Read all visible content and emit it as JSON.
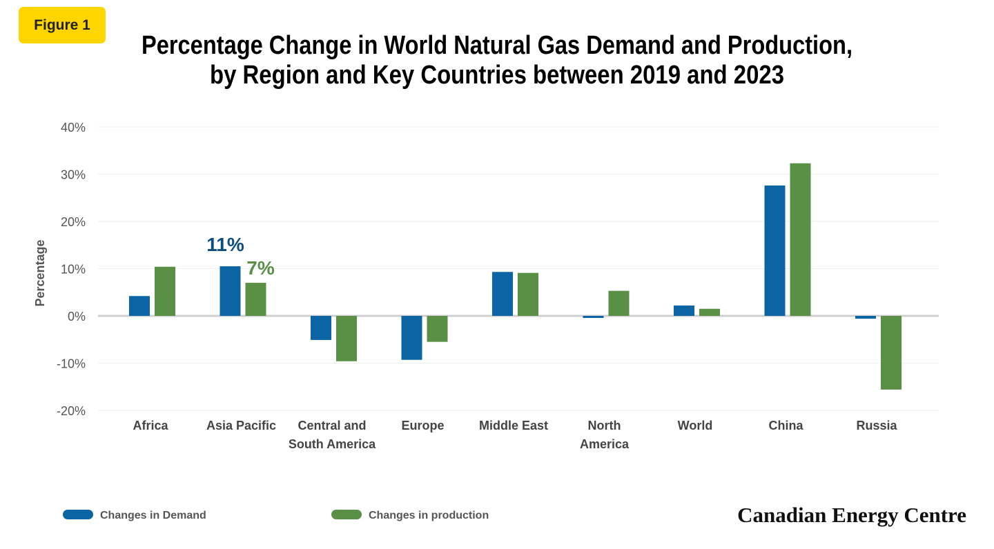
{
  "badge": "Figure 1",
  "brand": "Canadian Energy Centre",
  "colors": {
    "demand": "#0b64a3",
    "production": "#5a8f46",
    "badge": "#ffd500"
  },
  "chart_data": {
    "type": "bar",
    "title": [
      "Percentage Change in World Natural Gas Demand and Production,",
      "by Region and Key Countries between 2019 and 2023"
    ],
    "ylabel": "Percentage",
    "xlabel": "",
    "ylim": [
      -20,
      40
    ],
    "yticks": [
      "40%",
      "30%",
      "20%",
      "10%",
      "0%",
      "-10%",
      "-20%"
    ],
    "ytick_values": [
      40,
      30,
      20,
      10,
      0,
      -10,
      -20
    ],
    "grid": true,
    "legend": "bottom",
    "categories": [
      [
        "Africa"
      ],
      [
        "Asia Pacific"
      ],
      [
        "Central and",
        "South America"
      ],
      [
        "Europe"
      ],
      [
        "Middle East"
      ],
      [
        "North",
        "America"
      ],
      [
        "World"
      ],
      [
        "China"
      ],
      [
        "Russia"
      ]
    ],
    "series": [
      {
        "name": "Changes in Demand",
        "values": [
          4.2,
          10.5,
          -5.1,
          -9.3,
          9.3,
          -0.4,
          2.2,
          27.6,
          -0.6
        ]
      },
      {
        "name": "Changes in production",
        "values": [
          10.4,
          7.0,
          -9.6,
          -5.5,
          9.1,
          5.3,
          1.5,
          32.3,
          -15.6
        ]
      }
    ],
    "annotations": [
      {
        "category": "Asia Pacific",
        "series": "Changes in Demand",
        "text": "11%"
      },
      {
        "category": "Asia Pacific",
        "series": "Changes in production",
        "text": "7%"
      }
    ]
  }
}
